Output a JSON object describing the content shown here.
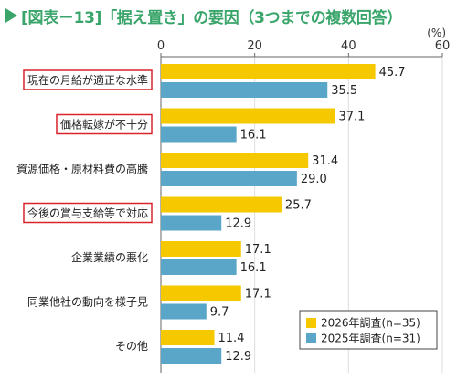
{
  "title": "[図表－13]「据え置き」の要因（3つまでの複数回答）",
  "colors": {
    "title": "#3aa56a",
    "series_2026": "#f5c800",
    "series_2025": "#5aa6c9",
    "highlight_border": "#d9232d",
    "axis": "#666666",
    "grid": "#dddddd"
  },
  "chart_data": {
    "type": "bar",
    "orientation": "horizontal",
    "unit_label": "(%)",
    "xlim": [
      0,
      60
    ],
    "x_ticks": [
      0,
      20,
      40,
      60
    ],
    "grid": true,
    "legend_position": "bottom-right",
    "categories": [
      "現在の月給が適正な水準",
      "価格転嫁が不十分",
      "資源価格・原材料費の高騰",
      "今後の賞与支給等で対応",
      "企業業績の悪化",
      "同業他社の動向を様子見",
      "その他"
    ],
    "highlighted_categories": [
      0,
      1,
      3
    ],
    "series": [
      {
        "name": "2026年調査(n=35)",
        "color": "#f5c800",
        "values": [
          45.7,
          37.1,
          31.4,
          25.7,
          17.1,
          17.1,
          11.4
        ],
        "labels": [
          "45.7",
          "37.1",
          "31.4",
          "25.7",
          "17.1",
          "17.1",
          "11.4"
        ]
      },
      {
        "name": "2025年調査(n=31)",
        "color": "#5aa6c9",
        "values": [
          35.5,
          16.1,
          29.0,
          12.9,
          16.1,
          9.7,
          12.9
        ],
        "labels": [
          "35.5",
          "16.1",
          "29.0",
          "12.9",
          "16.1",
          "9.7",
          "12.9"
        ]
      }
    ]
  }
}
